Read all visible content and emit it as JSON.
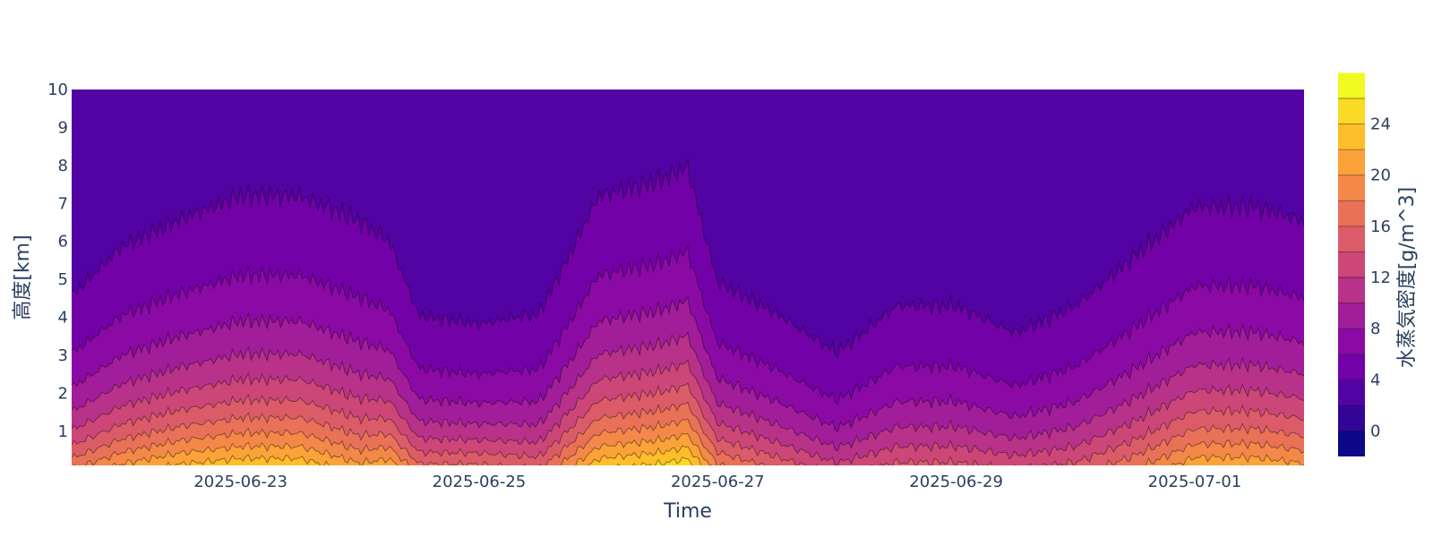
{
  "chart_data": {
    "type": "contour",
    "title": "",
    "xlabel": "Time",
    "ylabel": "高度[km]",
    "colorbar_title": "水蒸気密度[g/m^3]",
    "colorscale": [
      "#0d0887",
      "#330597",
      "#5302a3",
      "#7301a8",
      "#8b0aa5",
      "#a21d9a",
      "#b83289",
      "#cc4778",
      "#db5c68",
      "#e97158",
      "#f48849",
      "#fba238",
      "#febd2a",
      "#fada24",
      "#f0f921"
    ],
    "x_range": [
      "2025-06-21T14:00",
      "2025-07-01T22:00"
    ],
    "x_ticks": [
      "2025-06-23",
      "2025-06-25",
      "2025-06-27",
      "2025-06-29",
      "2025-07-01"
    ],
    "y_range": [
      0.1,
      10
    ],
    "y_ticks": [
      1,
      2,
      3,
      4,
      5,
      6,
      7,
      8,
      9,
      10
    ],
    "contour_start": 0,
    "contour_step": 2,
    "colorbar_range": [
      -2,
      26
    ],
    "colorbar_ticks": [
      0,
      4,
      8,
      12,
      16,
      20,
      24
    ],
    "profile_sample_points": {
      "x": [
        "2025-06-21T14:00",
        "2025-06-22T00:00",
        "2025-06-22T12:00",
        "2025-06-23T00:00",
        "2025-06-23T12:00",
        "2025-06-24T00:00",
        "2025-06-24T06:00",
        "2025-06-24T12:00",
        "2025-06-25T00:00",
        "2025-06-25T12:00",
        "2025-06-26T00:00",
        "2025-06-26T12:00",
        "2025-06-26T18:00",
        "2025-06-27T00:00",
        "2025-06-27T12:00",
        "2025-06-28T00:00",
        "2025-06-28T12:00",
        "2025-06-29T00:00",
        "2025-06-29T12:00",
        "2025-06-30T00:00",
        "2025-06-30T12:00",
        "2025-07-01T00:00",
        "2025-07-01T12:00",
        "2025-07-01T22:00"
      ],
      "surface_density": [
        16,
        19,
        21,
        22,
        22,
        19,
        20,
        15,
        15,
        14,
        22,
        23,
        24,
        17,
        14,
        11,
        13,
        13,
        12,
        13,
        16,
        20,
        20,
        19
      ],
      "scale_height_km": [
        2.2,
        2.6,
        2.8,
        3.0,
        3.0,
        2.9,
        2.6,
        2.0,
        1.9,
        2.1,
        3.0,
        3.1,
        3.2,
        2.3,
        2.1,
        1.8,
        2.3,
        2.3,
        2.0,
        2.3,
        2.7,
        3.0,
        3.0,
        2.9
      ]
    }
  }
}
